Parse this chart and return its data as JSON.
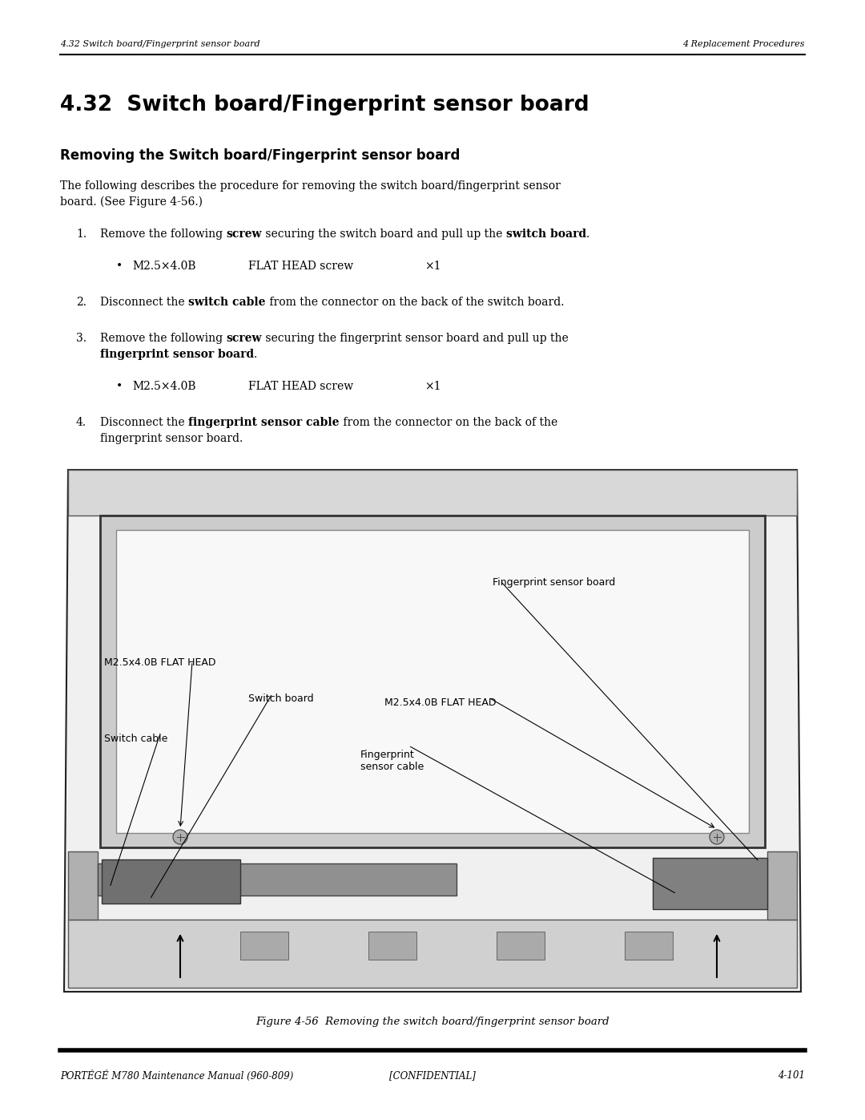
{
  "page_width": 10.8,
  "page_height": 13.97,
  "bg_color": "#ffffff",
  "header_left": "4.32 Switch board/Fingerprint sensor board",
  "header_right": "4 Replacement Procedures",
  "footer_left": "PORTÉGÉ M780 Maintenance Manual (960-809)",
  "footer_center": "[CONFIDENTIAL]",
  "footer_right": "4-101",
  "section_title": "4.32  Switch board/Fingerprint sensor board",
  "subsection_title": "Removing the Switch board/Fingerprint sensor board",
  "figure_caption": "Figure 4-56  Removing the switch board/fingerprint sensor board"
}
